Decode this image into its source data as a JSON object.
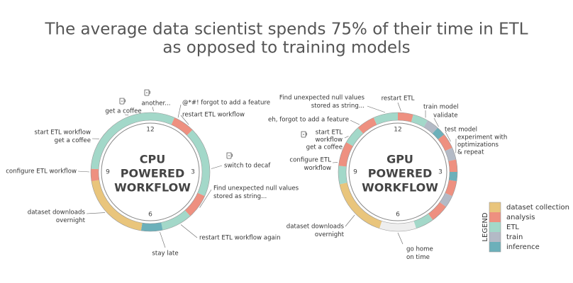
{
  "title": [
    "The average data scientist spends 75% of their time in ETL",
    "as opposed to training models"
  ],
  "legend": {
    "title": "LEGEND",
    "items": [
      {
        "name": "dataset collection",
        "color": "#e9c57c"
      },
      {
        "name": "analysis",
        "color": "#ee9080"
      },
      {
        "name": "ETL",
        "color": "#a3d8c9"
      },
      {
        "name": "train",
        "color": "#b3bac6"
      },
      {
        "name": "inference",
        "color": "#6cb0ba"
      }
    ]
  },
  "clocks": [
    {
      "center_label": [
        "CPU",
        "POWERED",
        "WORKFLOW"
      ],
      "hour_labels": [
        12,
        3,
        6,
        9
      ],
      "segments": [
        {
          "start": 0,
          "end": 0.8,
          "activity": "ETL"
        },
        {
          "start": 0.8,
          "end": 1.5,
          "activity": "analysis"
        },
        {
          "start": 1.5,
          "end": 3.8,
          "activity": "ETL"
        },
        {
          "start": 3.8,
          "end": 4.6,
          "activity": "analysis"
        },
        {
          "start": 4.6,
          "end": 5.6,
          "activity": "ETL"
        },
        {
          "start": 5.6,
          "end": 6.3,
          "activity": "inference"
        },
        {
          "start": 6.3,
          "end": 8.7,
          "activity": "dataset collection"
        },
        {
          "start": 8.7,
          "end": 9.1,
          "activity": "analysis"
        },
        {
          "start": 9.1,
          "end": 12,
          "activity": "ETL"
        }
      ],
      "annotations": [
        [
          "another..."
        ],
        [
          "get a coffee"
        ],
        [
          "@*#! forgot to add a feature"
        ],
        [
          "restart ETL workflow"
        ],
        [
          "start ETL workflow",
          "get a coffee"
        ],
        [
          "switch to decaf"
        ],
        [
          "configure ETL workflow"
        ],
        [
          "Find unexpected null values",
          "stored as string..."
        ],
        [
          "dataset downloads",
          "overnight"
        ],
        [
          "restart ETL workflow again"
        ],
        [
          "stay late"
        ]
      ]
    },
    {
      "center_label": [
        "GPU",
        "POWERED",
        "WORKFLOW"
      ],
      "hour_labels": [
        12,
        3,
        6,
        9
      ],
      "segments": [
        {
          "start": 0,
          "end": 0.5,
          "activity": "analysis"
        },
        {
          "start": 0.5,
          "end": 1,
          "activity": "ETL"
        },
        {
          "start": 1,
          "end": 1.4,
          "activity": "train"
        },
        {
          "start": 1.4,
          "end": 1.7,
          "activity": "inference"
        },
        {
          "start": 1.7,
          "end": 2.2,
          "activity": "analysis"
        },
        {
          "start": 2.2,
          "end": 2.6,
          "activity": "train"
        },
        {
          "start": 2.6,
          "end": 3,
          "activity": "analysis"
        },
        {
          "start": 3,
          "end": 3.3,
          "activity": "inference"
        },
        {
          "start": 3.3,
          "end": 3.8,
          "activity": "analysis"
        },
        {
          "start": 3.8,
          "end": 4.2,
          "activity": "train"
        },
        {
          "start": 4.2,
          "end": 4.8,
          "activity": "analysis"
        },
        {
          "start": 4.8,
          "end": 5.4,
          "activity": "ETL"
        },
        {
          "start": 6.6,
          "end": 8.6,
          "activity": "dataset collection"
        },
        {
          "start": 8.6,
          "end": 9.2,
          "activity": "ETL"
        },
        {
          "start": 9.2,
          "end": 10,
          "activity": "analysis"
        },
        {
          "start": 10,
          "end": 10.6,
          "activity": "ETL"
        },
        {
          "start": 10.6,
          "end": 11.2,
          "activity": "analysis"
        },
        {
          "start": 11.2,
          "end": 12,
          "activity": "ETL"
        }
      ],
      "annotations": [
        [
          "Find unexpected null values",
          "stored as string..."
        ],
        [
          "restart ETL"
        ],
        [
          "train model"
        ],
        [
          "eh, forgot to add a feature"
        ],
        [
          "validate"
        ],
        [
          "test model"
        ],
        [
          "start ETL",
          "workflow",
          "get a coffee"
        ],
        [
          "experiment with",
          "optimizations",
          "& repeat"
        ],
        [
          "configure ETL",
          "workflow"
        ],
        [
          "dataset downloads",
          "overnight"
        ],
        [
          "go home",
          "on time"
        ]
      ]
    }
  ]
}
